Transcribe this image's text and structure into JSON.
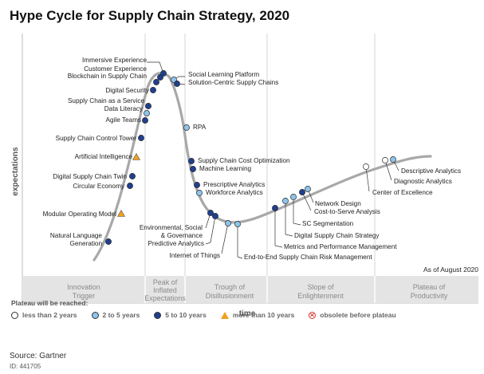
{
  "title": "Hype Cycle for Supply Chain Strategy, 2020",
  "axes": {
    "y_label": "expectations",
    "x_label": "time"
  },
  "as_of": "As of August 2020",
  "phases": [
    {
      "id": "innovation",
      "lines": [
        "Innovation",
        "Trigger"
      ]
    },
    {
      "id": "peak",
      "lines": [
        "Peak of",
        "Inflated",
        "Expectations"
      ]
    },
    {
      "id": "trough",
      "lines": [
        "Trough of",
        "Disillusionment"
      ]
    },
    {
      "id": "slope",
      "lines": [
        "Slope of",
        "Enlightenment"
      ]
    },
    {
      "id": "plateau",
      "lines": [
        "Plateau of",
        "Productivity"
      ]
    }
  ],
  "technologies": [
    {
      "name": "Natural Language Generation",
      "plateau": "5to10"
    },
    {
      "name": "Modular Operating Model",
      "plateau": "more10"
    },
    {
      "name": "Circular Economy",
      "plateau": "5to10"
    },
    {
      "name": "Digital Supply Chain Twin",
      "plateau": "5to10"
    },
    {
      "name": "Artificial Intelligence",
      "plateau": "more10"
    },
    {
      "name": "Supply Chain Control Tower",
      "plateau": "5to10"
    },
    {
      "name": "Agile Teams",
      "plateau": "5to10"
    },
    {
      "name": "Data Literacy",
      "plateau": "2to5"
    },
    {
      "name": "Supply Chain as a Service",
      "plateau": "5to10"
    },
    {
      "name": "Digital Security",
      "plateau": "5to10"
    },
    {
      "name": "Blockchain in Supply Chain",
      "plateau": "5to10"
    },
    {
      "name": "Customer Experience",
      "plateau": "5to10"
    },
    {
      "name": "Immersive Experience",
      "plateau": "5to10"
    },
    {
      "name": "Social Learning Platform",
      "plateau": "2to5"
    },
    {
      "name": "Solution-Centric Supply Chains",
      "plateau": "5to10"
    },
    {
      "name": "RPA",
      "plateau": "2to5"
    },
    {
      "name": "Supply Chain Cost Optimization",
      "plateau": "5to10"
    },
    {
      "name": "Machine Learning",
      "plateau": "5to10"
    },
    {
      "name": "Prescriptive Analytics",
      "plateau": "5to10"
    },
    {
      "name": "Workforce Analytics",
      "plateau": "2to5"
    },
    {
      "name": "Environmental, Social & Governance",
      "plateau": "5to10"
    },
    {
      "name": "Predictive Analytics",
      "plateau": "5to10"
    },
    {
      "name": "Internet of Things",
      "plateau": "2to5"
    },
    {
      "name": "End-to-End Supply Chain Risk Management",
      "plateau": "2to5"
    },
    {
      "name": "Metrics and Performance Management",
      "plateau": "5to10"
    },
    {
      "name": "Digital Supply Chain Strategy",
      "plateau": "2to5"
    },
    {
      "name": "SC Segmentation",
      "plateau": "2to5"
    },
    {
      "name": "Cost-to-Serve Analysis",
      "plateau": "5to10"
    },
    {
      "name": "Network Design",
      "plateau": "2to5"
    },
    {
      "name": "Center of Excellence",
      "plateau": "less2"
    },
    {
      "name": "Diagnostic Analytics",
      "plateau": "less2"
    },
    {
      "name": "Descriptive Analytics",
      "plateau": "2to5"
    }
  ],
  "legend": {
    "title": "Plateau will be reached:",
    "items": [
      {
        "id": "less2",
        "label": "less than 2 years",
        "color": "#ffffff"
      },
      {
        "id": "2to5",
        "label": "2 to 5 years",
        "color": "#8ec4ea"
      },
      {
        "id": "5to10",
        "label": "5 to 10 years",
        "color": "#1f3f8f"
      },
      {
        "id": "more10",
        "label": "more than 10 years",
        "color": "#f0a020"
      },
      {
        "id": "obsolete",
        "label": "obsolete before plateau",
        "color": "#dd3333"
      }
    ]
  },
  "source": "Source: Gartner",
  "doc_id": "ID: 441705"
}
